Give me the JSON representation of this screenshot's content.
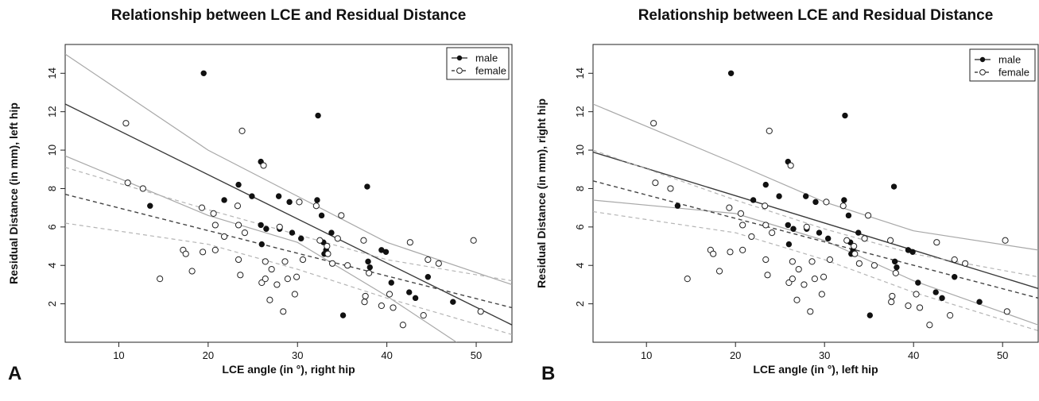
{
  "chart_data": [
    {
      "panel": "A",
      "type": "scatter",
      "title": "Relationship between LCE and Residual Distance",
      "xlabel": "LCE angle (in °), right hip",
      "ylabel": "Residual Distance (in mm), left hip",
      "xlim": [
        4,
        54
      ],
      "ylim": [
        0,
        15.5
      ],
      "x_ticks": [
        10,
        20,
        30,
        40,
        50
      ],
      "y_ticks": [
        2,
        4,
        6,
        8,
        10,
        12,
        14
      ],
      "legend_position": "top-right",
      "series": [
        {
          "name": "male",
          "marker": "filled",
          "line": "solid",
          "points": [
            [
              13.5,
              7.1
            ],
            [
              19.5,
              14.0
            ],
            [
              21.8,
              7.4
            ],
            [
              23.4,
              8.2
            ],
            [
              24.9,
              7.6
            ],
            [
              25.9,
              9.4
            ],
            [
              25.9,
              6.1
            ],
            [
              26.0,
              5.1
            ],
            [
              26.5,
              5.9
            ],
            [
              27.9,
              7.6
            ],
            [
              28.0,
              5.9
            ],
            [
              29.1,
              7.3
            ],
            [
              29.4,
              5.7
            ],
            [
              30.4,
              5.4
            ],
            [
              32.3,
              11.8
            ],
            [
              32.2,
              7.4
            ],
            [
              32.7,
              6.6
            ],
            [
              32.9,
              5.2
            ],
            [
              33.0,
              4.6
            ],
            [
              33.2,
              4.8
            ],
            [
              33.8,
              5.7
            ],
            [
              35.1,
              1.4
            ],
            [
              37.8,
              8.1
            ],
            [
              37.9,
              4.2
            ],
            [
              38.1,
              3.9
            ],
            [
              39.4,
              4.8
            ],
            [
              39.9,
              4.7
            ],
            [
              40.5,
              3.1
            ],
            [
              42.5,
              2.6
            ],
            [
              43.2,
              2.3
            ],
            [
              44.6,
              3.4
            ],
            [
              47.4,
              2.1
            ]
          ],
          "fit": [
            [
              4,
              12.4
            ],
            [
              54,
              0.9
            ]
          ],
          "ci_upper": [
            [
              4,
              15.0
            ],
            [
              20,
              10.0
            ],
            [
              30,
              7.6
            ],
            [
              40,
              5.2
            ],
            [
              54,
              3.0
            ]
          ],
          "ci_lower": [
            [
              4,
              9.7
            ],
            [
              20,
              6.6
            ],
            [
              30,
              5.2
            ],
            [
              40,
              2.4
            ],
            [
              47.8,
              0.0
            ]
          ]
        },
        {
          "name": "female",
          "marker": "open",
          "line": "dashed",
          "points": [
            [
              10.8,
              11.4
            ],
            [
              11.0,
              8.3
            ],
            [
              12.7,
              8.0
            ],
            [
              14.6,
              3.3
            ],
            [
              17.2,
              4.8
            ],
            [
              17.5,
              4.6
            ],
            [
              18.2,
              3.7
            ],
            [
              19.3,
              7.0
            ],
            [
              19.4,
              4.7
            ],
            [
              20.6,
              6.7
            ],
            [
              20.8,
              6.1
            ],
            [
              20.8,
              4.8
            ],
            [
              21.8,
              5.5
            ],
            [
              23.3,
              7.1
            ],
            [
              23.4,
              6.1
            ],
            [
              23.4,
              4.3
            ],
            [
              23.6,
              3.5
            ],
            [
              23.8,
              11.0
            ],
            [
              24.1,
              5.7
            ],
            [
              26.0,
              3.1
            ],
            [
              26.2,
              9.2
            ],
            [
              26.4,
              3.3
            ],
            [
              26.4,
              4.2
            ],
            [
              26.9,
              2.2
            ],
            [
              27.1,
              3.8
            ],
            [
              27.7,
              3.0
            ],
            [
              28.0,
              6.0
            ],
            [
              28.4,
              1.6
            ],
            [
              28.6,
              4.2
            ],
            [
              28.9,
              3.3
            ],
            [
              29.7,
              2.5
            ],
            [
              29.9,
              3.4
            ],
            [
              30.2,
              7.3
            ],
            [
              30.6,
              4.3
            ],
            [
              32.1,
              7.1
            ],
            [
              32.5,
              5.3
            ],
            [
              33.3,
              5.0
            ],
            [
              33.4,
              4.6
            ],
            [
              33.9,
              4.1
            ],
            [
              34.5,
              5.4
            ],
            [
              34.9,
              6.6
            ],
            [
              35.6,
              4.0
            ],
            [
              37.4,
              5.3
            ],
            [
              37.5,
              2.1
            ],
            [
              37.6,
              2.4
            ],
            [
              38.0,
              3.6
            ],
            [
              39.4,
              1.9
            ],
            [
              40.3,
              2.5
            ],
            [
              40.7,
              1.8
            ],
            [
              41.8,
              0.9
            ],
            [
              42.6,
              5.2
            ],
            [
              44.1,
              1.4
            ],
            [
              44.6,
              4.3
            ],
            [
              45.8,
              4.1
            ],
            [
              49.7,
              5.3
            ],
            [
              50.5,
              1.6
            ]
          ],
          "fit": [
            [
              4,
              7.7
            ],
            [
              54,
              1.8
            ]
          ],
          "ci_upper": [
            [
              4,
              9.1
            ],
            [
              20,
              6.9
            ],
            [
              30,
              5.6
            ],
            [
              40,
              4.3
            ],
            [
              54,
              3.2
            ]
          ],
          "ci_lower": [
            [
              4,
              6.2
            ],
            [
              20,
              5.1
            ],
            [
              30,
              3.8
            ],
            [
              40,
              2.3
            ],
            [
              54,
              0.4
            ]
          ]
        }
      ]
    },
    {
      "panel": "B",
      "type": "scatter",
      "title": "Relationship between LCE and Residual Distance",
      "xlabel": "LCE angle (in °), left hip",
      "ylabel": "Residual Distance (in mm), right hip",
      "xlim": [
        4,
        54
      ],
      "ylim": [
        0,
        15.5
      ],
      "x_ticks": [
        10,
        20,
        30,
        40,
        50
      ],
      "y_ticks": [
        2,
        4,
        6,
        8,
        10,
        12,
        14
      ],
      "legend_position": "top-right",
      "series": [
        {
          "name": "male",
          "marker": "filled",
          "line": "solid",
          "points": [
            [
              13.5,
              7.1
            ],
            [
              19.5,
              14.0
            ],
            [
              22.0,
              7.4
            ],
            [
              23.4,
              8.2
            ],
            [
              24.9,
              7.6
            ],
            [
              25.9,
              9.4
            ],
            [
              25.9,
              6.1
            ],
            [
              26.0,
              5.1
            ],
            [
              26.5,
              5.9
            ],
            [
              27.9,
              7.6
            ],
            [
              28.0,
              5.9
            ],
            [
              29.0,
              7.3
            ],
            [
              29.4,
              5.7
            ],
            [
              30.4,
              5.4
            ],
            [
              32.3,
              11.8
            ],
            [
              32.2,
              7.4
            ],
            [
              32.7,
              6.6
            ],
            [
              32.9,
              5.2
            ],
            [
              33.0,
              4.6
            ],
            [
              33.2,
              4.8
            ],
            [
              33.8,
              5.7
            ],
            [
              35.1,
              1.4
            ],
            [
              37.8,
              8.1
            ],
            [
              37.9,
              4.2
            ],
            [
              38.1,
              3.9
            ],
            [
              39.4,
              4.8
            ],
            [
              39.9,
              4.7
            ],
            [
              40.5,
              3.1
            ],
            [
              42.5,
              2.6
            ],
            [
              43.2,
              2.3
            ],
            [
              44.6,
              3.4
            ],
            [
              47.4,
              2.1
            ]
          ],
          "fit": [
            [
              4,
              9.9
            ],
            [
              54,
              2.8
            ]
          ],
          "ci_upper": [
            [
              4,
              12.4
            ],
            [
              20,
              9.3
            ],
            [
              30,
              7.3
            ],
            [
              40,
              5.8
            ],
            [
              54,
              4.8
            ]
          ],
          "ci_lower": [
            [
              4,
              7.4
            ],
            [
              20,
              6.7
            ],
            [
              30,
              5.3
            ],
            [
              40,
              3.2
            ],
            [
              54,
              0.9
            ]
          ]
        },
        {
          "name": "female",
          "marker": "open",
          "line": "dashed",
          "points": [
            [
              10.8,
              11.4
            ],
            [
              11.0,
              8.3
            ],
            [
              12.7,
              8.0
            ],
            [
              14.6,
              3.3
            ],
            [
              17.2,
              4.8
            ],
            [
              17.5,
              4.6
            ],
            [
              18.2,
              3.7
            ],
            [
              19.3,
              7.0
            ],
            [
              19.4,
              4.7
            ],
            [
              20.6,
              6.7
            ],
            [
              20.8,
              6.1
            ],
            [
              20.8,
              4.8
            ],
            [
              21.8,
              5.5
            ],
            [
              23.3,
              7.1
            ],
            [
              23.4,
              6.1
            ],
            [
              23.4,
              4.3
            ],
            [
              23.6,
              3.5
            ],
            [
              23.8,
              11.0
            ],
            [
              24.1,
              5.7
            ],
            [
              26.0,
              3.1
            ],
            [
              26.2,
              9.2
            ],
            [
              26.4,
              3.3
            ],
            [
              26.4,
              4.2
            ],
            [
              26.9,
              2.2
            ],
            [
              27.1,
              3.8
            ],
            [
              27.7,
              3.0
            ],
            [
              28.0,
              6.0
            ],
            [
              28.4,
              1.6
            ],
            [
              28.6,
              4.2
            ],
            [
              28.9,
              3.3
            ],
            [
              29.7,
              2.5
            ],
            [
              29.9,
              3.4
            ],
            [
              30.2,
              7.3
            ],
            [
              30.6,
              4.3
            ],
            [
              32.1,
              7.1
            ],
            [
              32.5,
              5.3
            ],
            [
              33.3,
              5.0
            ],
            [
              33.4,
              4.6
            ],
            [
              33.9,
              4.1
            ],
            [
              34.5,
              5.4
            ],
            [
              34.9,
              6.6
            ],
            [
              35.6,
              4.0
            ],
            [
              37.4,
              5.3
            ],
            [
              37.5,
              2.1
            ],
            [
              37.6,
              2.4
            ],
            [
              38.0,
              3.6
            ],
            [
              39.4,
              1.9
            ],
            [
              40.3,
              2.5
            ],
            [
              40.7,
              1.8
            ],
            [
              41.8,
              0.9
            ],
            [
              42.6,
              5.2
            ],
            [
              44.1,
              1.4
            ],
            [
              44.6,
              4.3
            ],
            [
              45.8,
              4.1
            ],
            [
              50.3,
              5.3
            ],
            [
              50.5,
              1.6
            ]
          ],
          "fit": [
            [
              4,
              8.4
            ],
            [
              54,
              2.3
            ]
          ],
          "ci_upper": [
            [
              4,
              10.0
            ],
            [
              20,
              7.4
            ],
            [
              30,
              5.9
            ],
            [
              40,
              4.6
            ],
            [
              54,
              3.4
            ]
          ],
          "ci_lower": [
            [
              4,
              6.8
            ],
            [
              20,
              5.7
            ],
            [
              30,
              4.3
            ],
            [
              40,
              2.6
            ],
            [
              54,
              0.6
            ]
          ]
        }
      ]
    }
  ]
}
